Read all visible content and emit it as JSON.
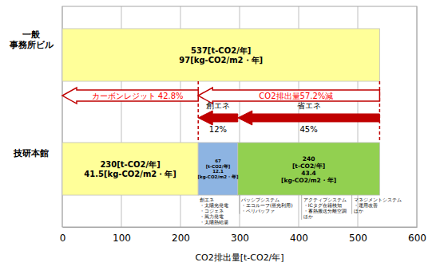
{
  "chart_data": {
    "type": "bar",
    "orientation": "horizontal",
    "stacked": true,
    "data_labels": true,
    "grid": true,
    "categories": [
      "一般\n事務所ビル",
      "技研本館"
    ],
    "series": [
      {
        "color": "#ffff99",
        "values": [
          537,
          230
        ],
        "value_labels": [
          "537[t-CO2/年]",
          "230[t-CO2/年]"
        ],
        "per_area": [
          97,
          41.5
        ],
        "per_area_labels": [
          "97[kg-CO2/m2・年]",
          "41.5[kg-CO2/m2・年]"
        ]
      },
      {
        "color": "#8db4e2",
        "values": [
          null,
          67
        ],
        "value_labels": [
          null,
          "67\n[t-CO2/年]"
        ],
        "per_area": [
          null,
          12.1
        ],
        "per_area_labels": [
          null,
          "12.1\n[kg-CO2/m2・年]"
        ]
      },
      {
        "color": "#92d050",
        "values": [
          null,
          240
        ],
        "value_labels": [
          null,
          "240\n[t-CO2/年]"
        ],
        "per_area": [
          null,
          43.4
        ],
        "per_area_labels": [
          null,
          "43.4\n[kg-CO2/m2・年]"
        ]
      }
    ],
    "xlim": [
      0,
      600
    ],
    "xticks": [
      0,
      100,
      200,
      300,
      400,
      500,
      600
    ],
    "xlabel": "CO2排出量[t-CO2/年]",
    "annotations": [
      {
        "text": "カーボンレジット 42.8%",
        "x": [
          230,
          0
        ],
        "line_style": "outline"
      },
      {
        "text": "CO2排出量57.2%減",
        "x": [
          537,
          230
        ],
        "line_style": "outline"
      },
      {
        "text": "創エネ\n12%",
        "x": [
          297,
          230
        ],
        "line_style": "solid"
      },
      {
        "text": "省エネ\n45%",
        "x": [
          537,
          297
        ],
        "line_style": "solid"
      }
    ],
    "reference_lines": [
      {
        "x": 537,
        "line_style": "dashed"
      },
      {
        "x": 230,
        "line_style": "dashed"
      }
    ],
    "notes": [
      {
        "x": 230,
        "text": "創エネ\n・太陽光発電\n・コジェネ\n・風力発電\n・太陽熱給湯"
      },
      {
        "x": 300,
        "text": "パッシブシステム\n・エコルーフ(昼光利用)\n・ペリバッファ"
      },
      {
        "x": 405,
        "text": "アクティブシステム\n・ICタグ在籍検知\n・蓄熱搬送分離空調\nほか"
      },
      {
        "x": 490,
        "text": "マネジメントシステム\n・運用改善\nほか"
      }
    ]
  }
}
